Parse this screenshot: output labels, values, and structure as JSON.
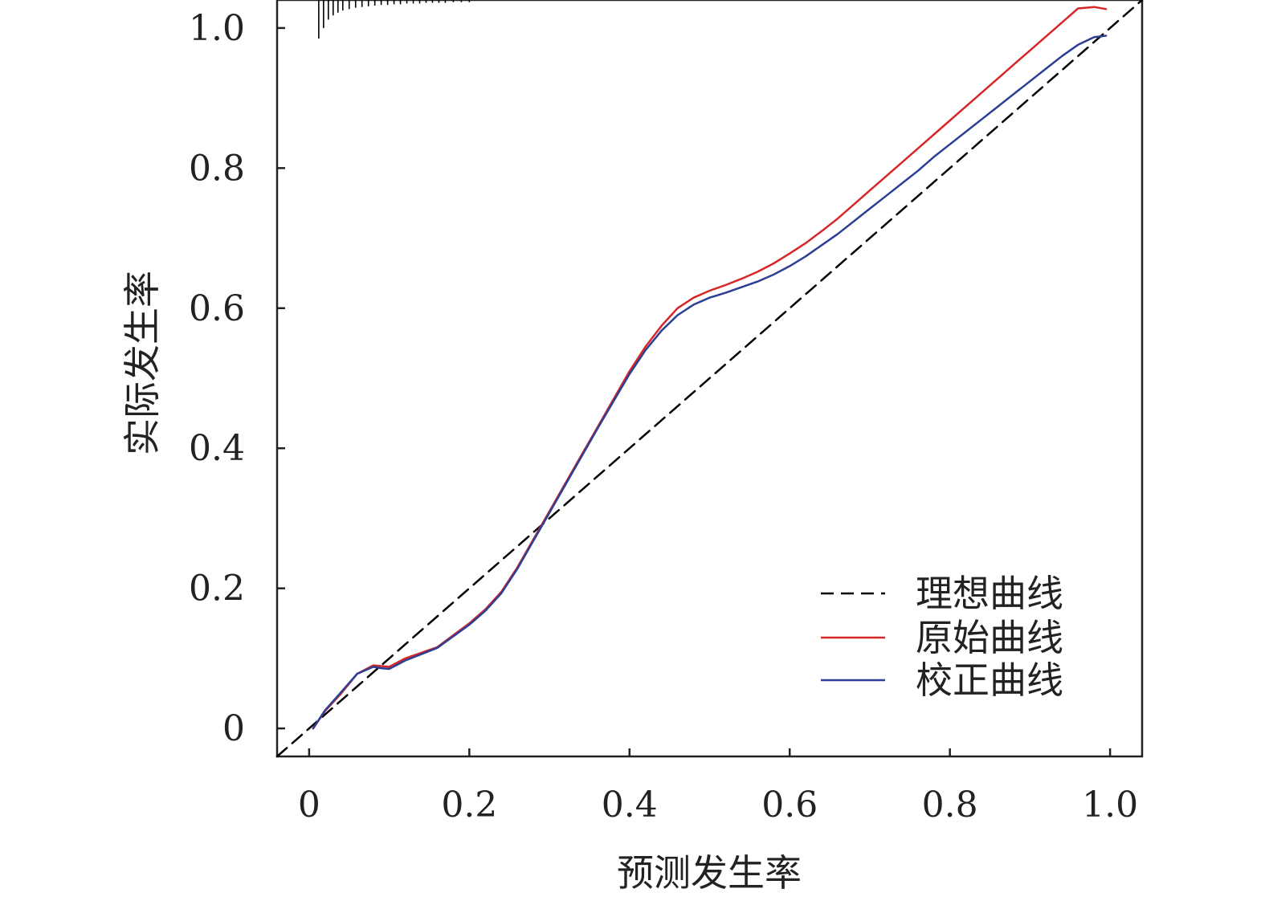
{
  "chart_data": {
    "type": "line",
    "xlabel": "预测发生率",
    "ylabel": "实际发生率",
    "xlim": [
      -0.04,
      1.04
    ],
    "ylim": [
      -0.04,
      1.04
    ],
    "x_ticks": [
      0,
      0.2,
      0.4,
      0.6,
      0.8,
      1.0
    ],
    "x_tick_labels": [
      "0",
      "0.2",
      "0.4",
      "0.6",
      "0.8",
      "1.0"
    ],
    "y_ticks": [
      0,
      0.2,
      0.4,
      0.6,
      0.8,
      1.0
    ],
    "y_tick_labels": [
      "0",
      "0.2",
      "0.4",
      "0.6",
      "0.8",
      "1.0"
    ],
    "grid": false,
    "legend_position": "bottom-right",
    "series": [
      {
        "name": "理想曲线",
        "color": "#000000",
        "style": "dashed",
        "x": [
          -0.04,
          1.04
        ],
        "y": [
          -0.04,
          1.04
        ]
      },
      {
        "name": "原始曲线",
        "color": "#d62728",
        "style": "solid",
        "x": [
          0.005,
          0.02,
          0.04,
          0.06,
          0.08,
          0.09,
          0.1,
          0.12,
          0.14,
          0.16,
          0.2,
          0.22,
          0.24,
          0.26,
          0.28,
          0.3,
          0.32,
          0.34,
          0.36,
          0.38,
          0.4,
          0.42,
          0.44,
          0.46,
          0.48,
          0.5,
          0.52,
          0.54,
          0.56,
          0.58,
          0.6,
          0.62,
          0.64,
          0.66,
          0.68,
          0.7,
          0.72,
          0.74,
          0.76,
          0.78,
          0.8,
          0.82,
          0.84,
          0.86,
          0.88,
          0.9,
          0.92,
          0.94,
          0.96,
          0.98,
          0.995
        ],
        "y": [
          0.0,
          0.025,
          0.05,
          0.078,
          0.09,
          0.089,
          0.088,
          0.1,
          0.108,
          0.116,
          0.15,
          0.17,
          0.195,
          0.23,
          0.27,
          0.31,
          0.35,
          0.39,
          0.43,
          0.47,
          0.51,
          0.545,
          0.575,
          0.6,
          0.615,
          0.625,
          0.633,
          0.642,
          0.652,
          0.664,
          0.678,
          0.693,
          0.71,
          0.728,
          0.748,
          0.768,
          0.788,
          0.808,
          0.828,
          0.848,
          0.868,
          0.888,
          0.908,
          0.928,
          0.948,
          0.968,
          0.988,
          1.008,
          1.028,
          1.03,
          1.027
        ]
      },
      {
        "name": "校正曲线",
        "color": "#2b3f94",
        "style": "solid",
        "x": [
          0.005,
          0.02,
          0.04,
          0.06,
          0.08,
          0.09,
          0.1,
          0.12,
          0.14,
          0.16,
          0.2,
          0.22,
          0.24,
          0.26,
          0.28,
          0.3,
          0.32,
          0.34,
          0.36,
          0.38,
          0.4,
          0.42,
          0.44,
          0.46,
          0.48,
          0.5,
          0.52,
          0.54,
          0.56,
          0.58,
          0.6,
          0.62,
          0.64,
          0.66,
          0.68,
          0.7,
          0.72,
          0.74,
          0.76,
          0.78,
          0.8,
          0.82,
          0.84,
          0.86,
          0.88,
          0.9,
          0.92,
          0.94,
          0.96,
          0.98,
          0.995
        ],
        "y": [
          0.0,
          0.026,
          0.052,
          0.078,
          0.088,
          0.086,
          0.085,
          0.097,
          0.106,
          0.115,
          0.148,
          0.168,
          0.193,
          0.228,
          0.268,
          0.308,
          0.348,
          0.388,
          0.428,
          0.467,
          0.506,
          0.54,
          0.568,
          0.59,
          0.605,
          0.615,
          0.622,
          0.63,
          0.638,
          0.648,
          0.66,
          0.674,
          0.69,
          0.706,
          0.724,
          0.742,
          0.76,
          0.778,
          0.796,
          0.816,
          0.834,
          0.852,
          0.87,
          0.888,
          0.906,
          0.924,
          0.942,
          0.96,
          0.976,
          0.987,
          0.989
        ]
      }
    ],
    "rug": {
      "color": "#000000",
      "x": [
        0.012,
        0.018,
        0.024,
        0.03,
        0.036,
        0.042,
        0.05,
        0.058,
        0.066,
        0.074,
        0.082,
        0.09,
        0.098,
        0.106,
        0.114,
        0.122,
        0.13,
        0.138,
        0.146,
        0.154,
        0.162,
        0.17,
        0.18,
        0.19,
        0.2
      ],
      "length": [
        0.055,
        0.04,
        0.028,
        0.022,
        0.018,
        0.015,
        0.013,
        0.011,
        0.01,
        0.009,
        0.008,
        0.007,
        0.007,
        0.006,
        0.006,
        0.005,
        0.005,
        0.005,
        0.004,
        0.004,
        0.004,
        0.004,
        0.003,
        0.003,
        0.003
      ]
    }
  }
}
